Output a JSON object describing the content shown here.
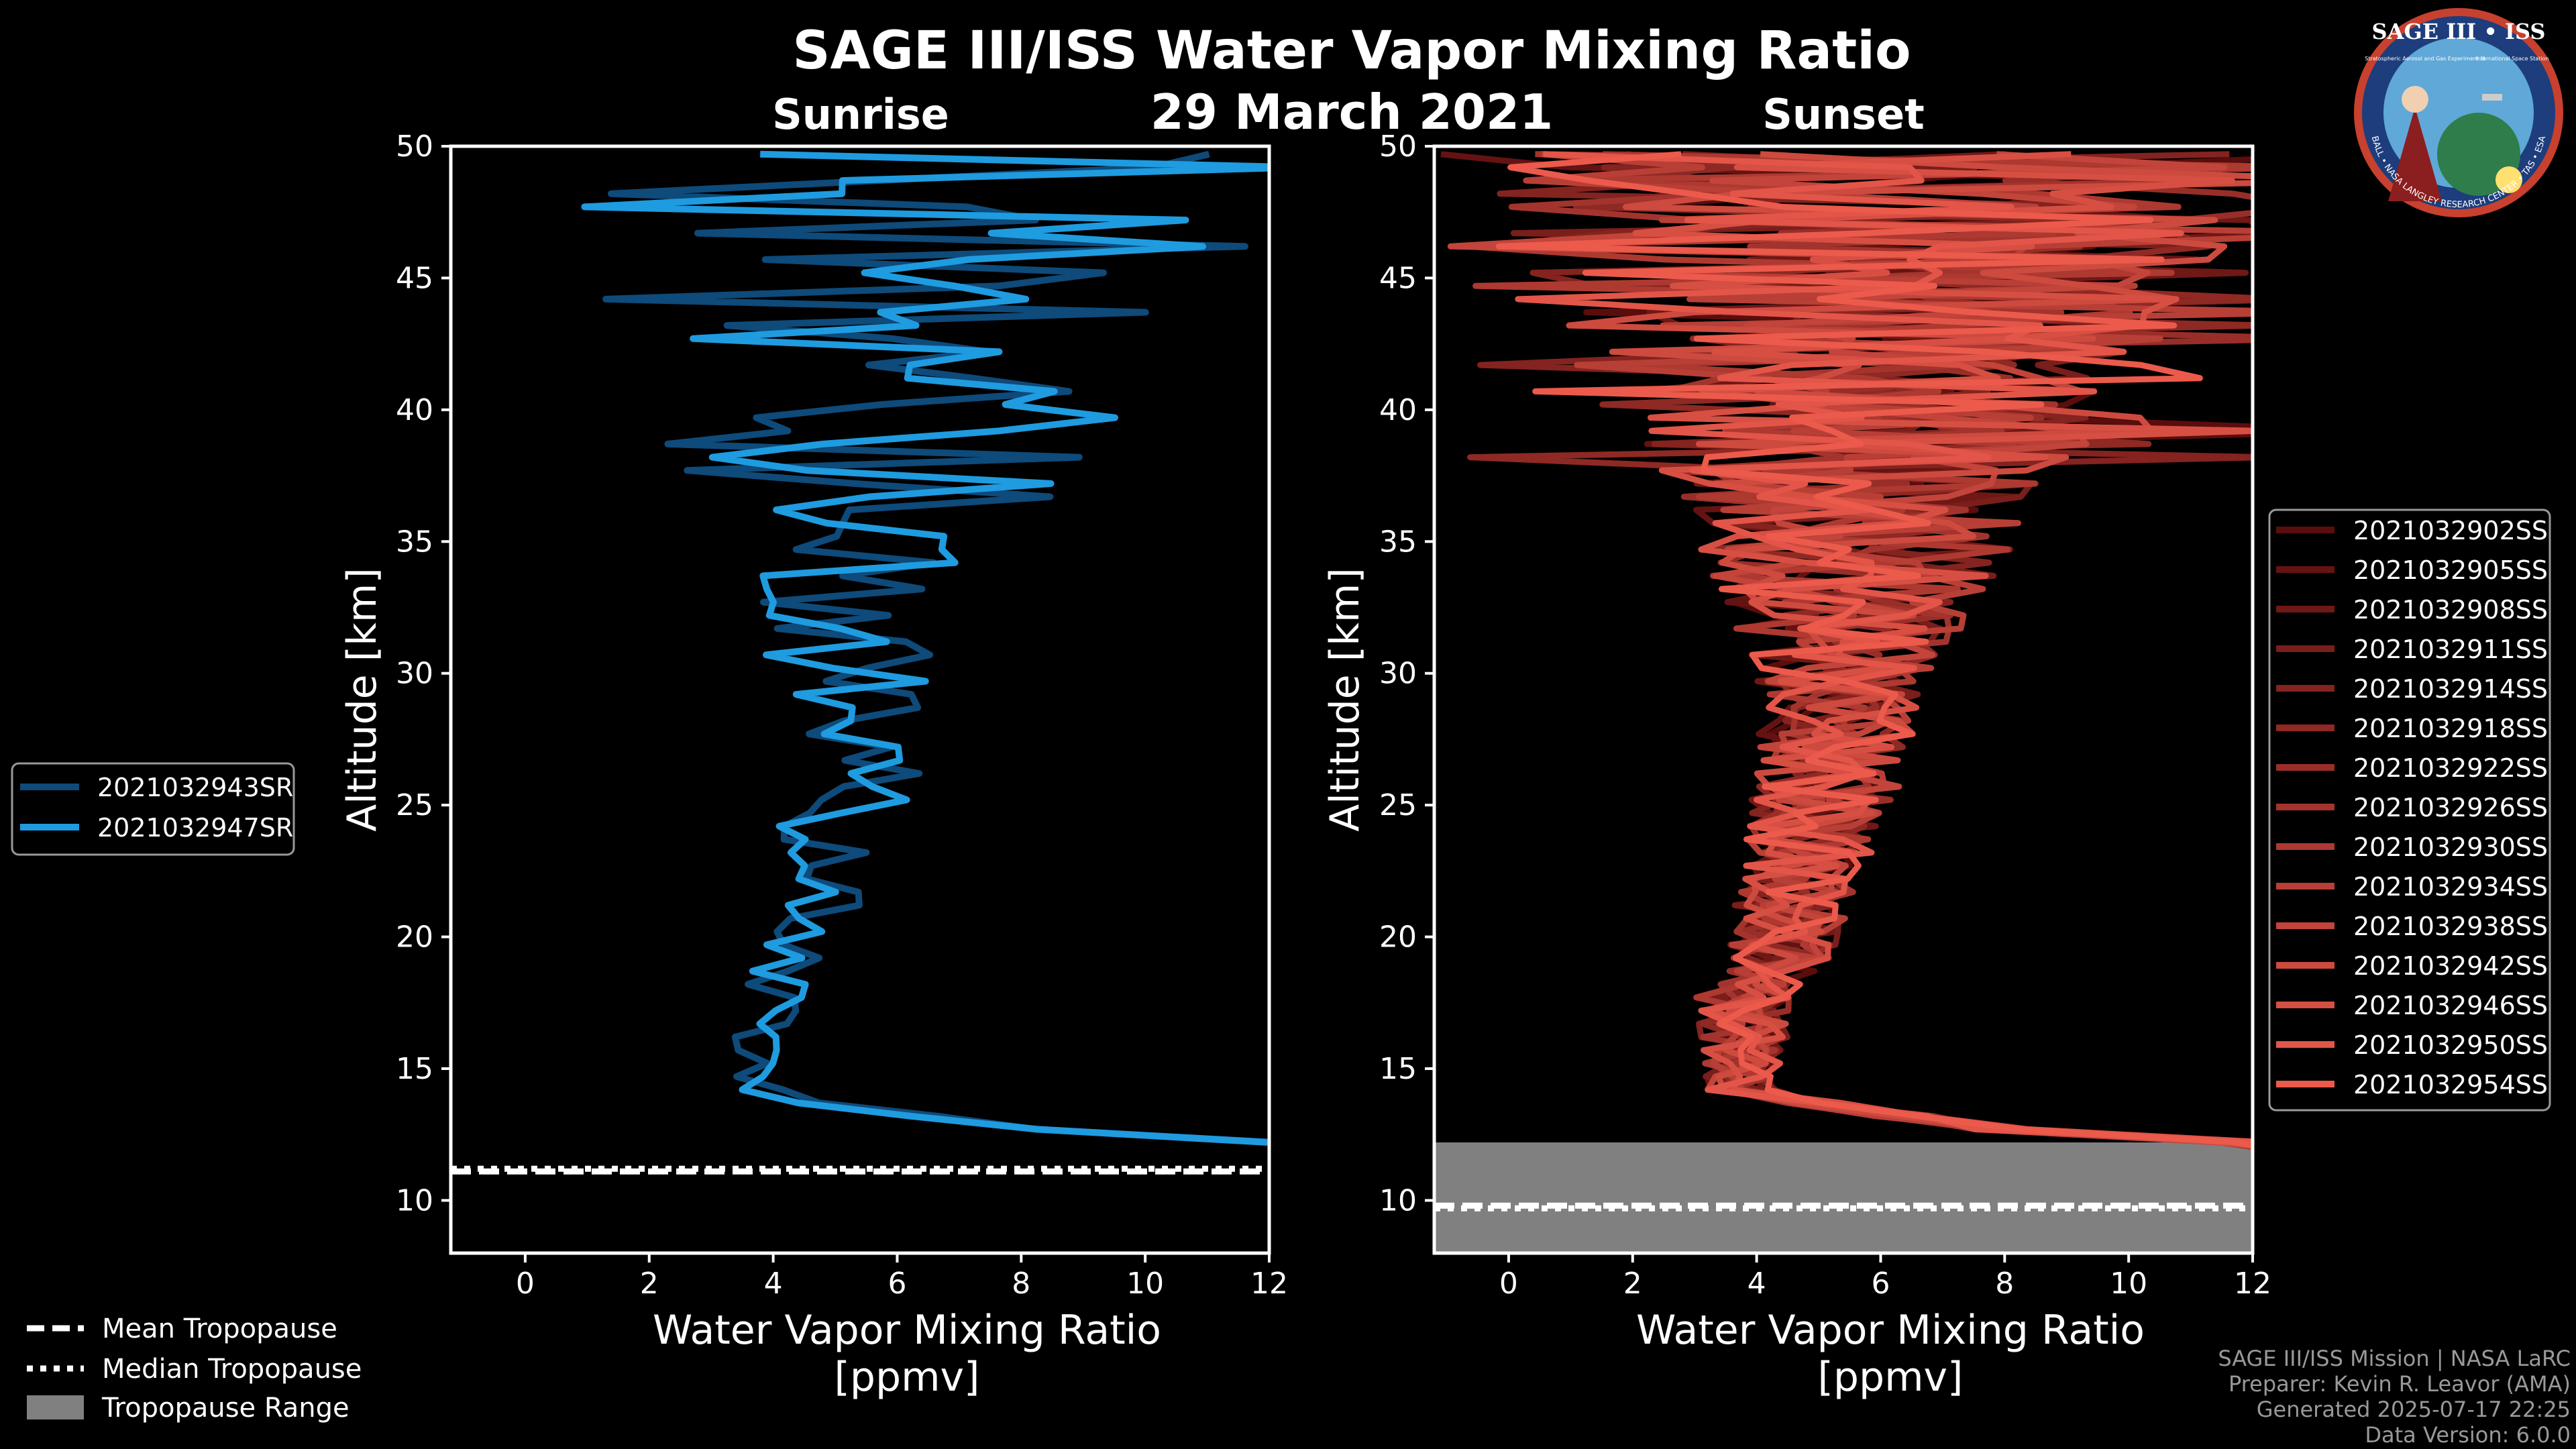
{
  "title": "SAGE III/ISS Water Vapor Mixing Ratio",
  "date": "29 March 2021",
  "colors": {
    "background": "#000000",
    "sunrise_dark": "#0e4a7a",
    "sunrise": "#1f9be0",
    "sunset_dark": "#5a0d0d",
    "sunset": "#ec5a4c",
    "tropopause_range": "#808080",
    "axis": "#ffffff"
  },
  "logo": {
    "title": "SAGE III • ISS",
    "subtitle": "Stratospheric Aerosol and Gas Experiment III",
    "station": "International Space Station",
    "ring": "BALL • NASA LANGLEY RESEARCH CENTER • TAS • ESA"
  },
  "footer": {
    "line1": "SAGE III/ISS Mission | NASA LaRC",
    "line2": "Preparer: Kevin R. Leavor (AMA)",
    "line3": "Generated 2025-07-17 22:25",
    "line4": "Data Version: 6.0.0"
  },
  "tropopause_legend": {
    "mean": "Mean Tropopause",
    "median": "Median Tropopause",
    "range": "Tropopause Range"
  },
  "chart_data": [
    {
      "id": "sunrise",
      "type": "line",
      "title": "Sunrise",
      "xlabel": "Water Vapor Mixing Ratio\n[ppmv]",
      "xlabel_line1": "Water Vapor Mixing Ratio",
      "xlabel_line2": "[ppmv]",
      "ylabel": "Altitude [km]",
      "xlim": [
        -1.2,
        12
      ],
      "ylim": [
        8,
        50
      ],
      "xticks": [
        0,
        2,
        4,
        6,
        8,
        10,
        12
      ],
      "yticks": [
        10,
        15,
        20,
        25,
        30,
        35,
        40,
        45,
        50
      ],
      "tropopause": {
        "mean": 11.1,
        "median": 11.2,
        "range": null
      },
      "series": [
        {
          "name": "2021032943SR",
          "shade": "dark"
        },
        {
          "name": "2021032947SR",
          "shade": "bright"
        }
      ]
    },
    {
      "id": "sunset",
      "type": "line",
      "title": "Sunset",
      "xlabel": "Water Vapor Mixing Ratio\n[ppmv]",
      "xlabel_line1": "Water Vapor Mixing Ratio",
      "xlabel_line2": "[ppmv]",
      "ylabel": "Altitude [km]",
      "xlim": [
        -1.2,
        12
      ],
      "ylim": [
        8,
        50
      ],
      "xticks": [
        0,
        2,
        4,
        6,
        8,
        10,
        12
      ],
      "yticks": [
        10,
        15,
        20,
        25,
        30,
        35,
        40,
        45,
        50
      ],
      "tropopause": {
        "mean": 9.8,
        "median": 9.7,
        "range": [
          8,
          12.2
        ]
      },
      "series": [
        {
          "name": "2021032902SS"
        },
        {
          "name": "2021032905SS"
        },
        {
          "name": "2021032908SS"
        },
        {
          "name": "2021032911SS"
        },
        {
          "name": "2021032914SS"
        },
        {
          "name": "2021032918SS"
        },
        {
          "name": "2021032922SS"
        },
        {
          "name": "2021032926SS"
        },
        {
          "name": "2021032930SS"
        },
        {
          "name": "2021032934SS"
        },
        {
          "name": "2021032938SS"
        },
        {
          "name": "2021032942SS"
        },
        {
          "name": "2021032946SS"
        },
        {
          "name": "2021032950SS"
        },
        {
          "name": "2021032954SS"
        }
      ]
    }
  ]
}
